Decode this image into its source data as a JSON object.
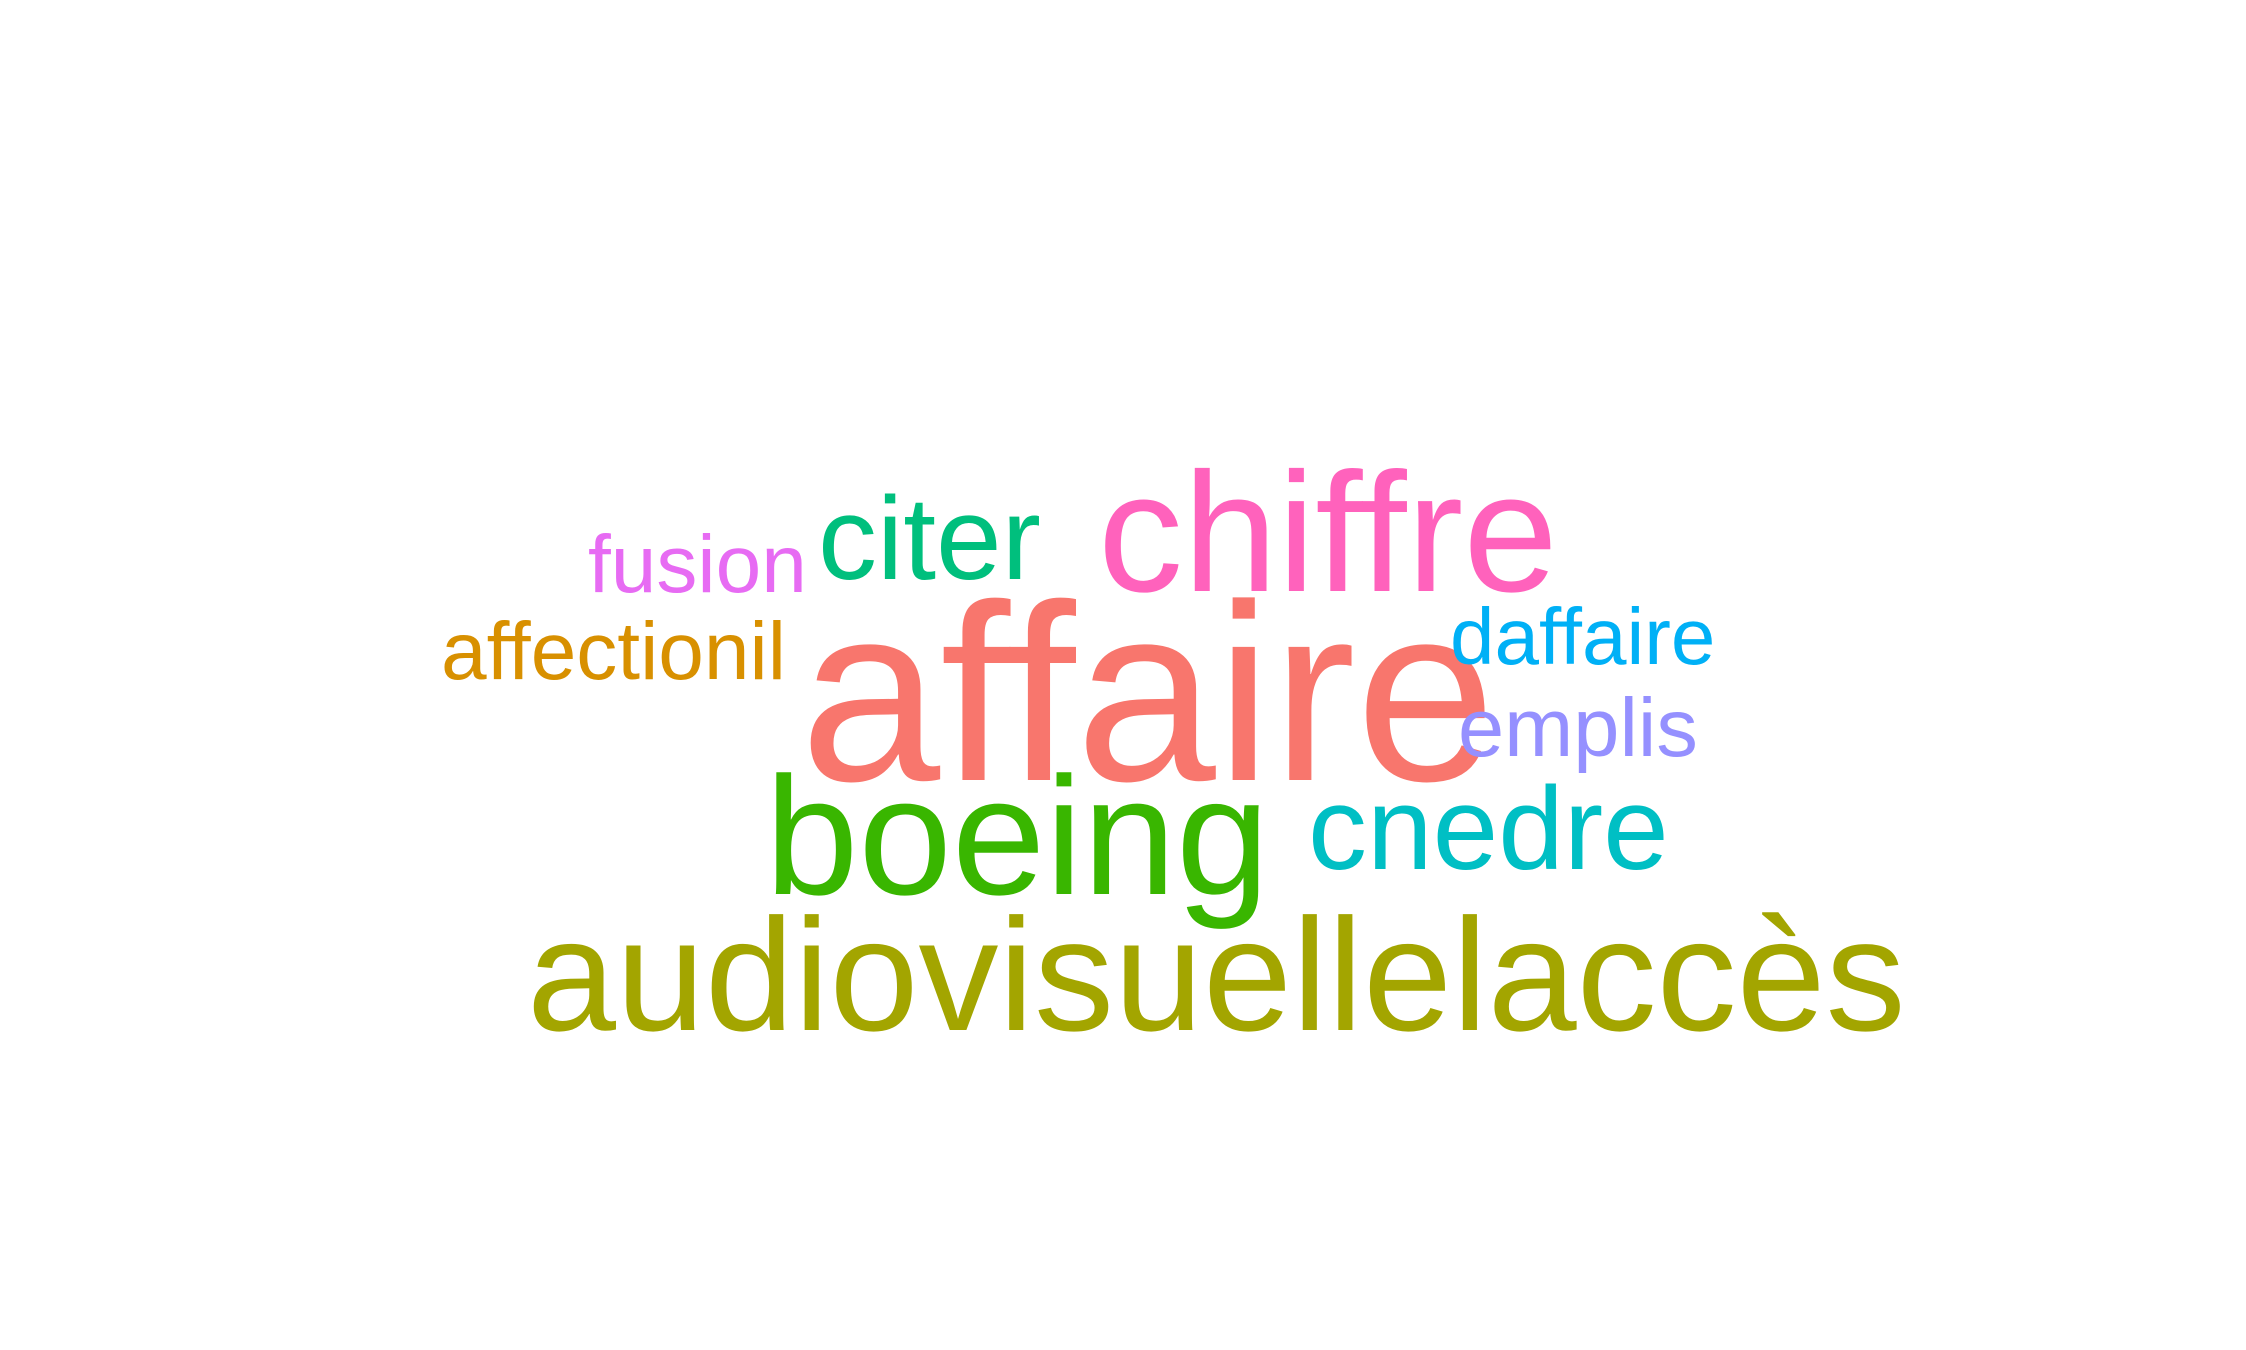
{
  "words": [
    {
      "text": "affaire",
      "color": "#F8766D"
    },
    {
      "text": "chiffre",
      "color": "#FF62BC"
    },
    {
      "text": "citer",
      "color": "#00BF7D"
    },
    {
      "text": "fusion",
      "color": "#E76BF3"
    },
    {
      "text": "affectionil",
      "color": "#D89000"
    },
    {
      "text": "daffaire",
      "color": "#00B0F6"
    },
    {
      "text": "emplis",
      "color": "#9590FF"
    },
    {
      "text": "boeing",
      "color": "#39B600"
    },
    {
      "text": "cnedre",
      "color": "#00BFC4"
    },
    {
      "text": "audiovisuellelaccès",
      "color": "#A3A500"
    }
  ]
}
